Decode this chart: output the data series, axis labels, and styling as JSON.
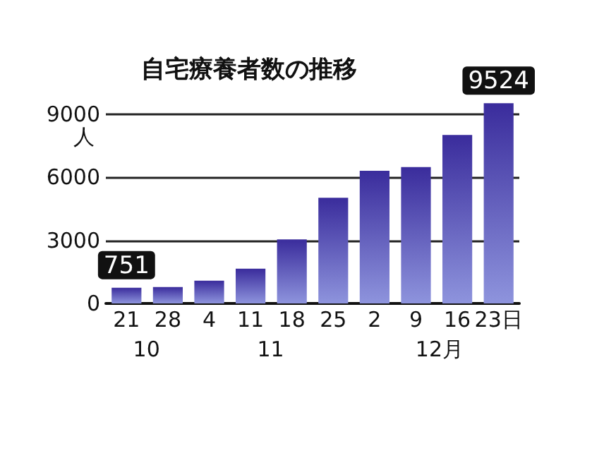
{
  "chart_data": {
    "type": "bar",
    "title": "自宅療養者数の推移",
    "ylabel": "人",
    "categories": [
      "21",
      "28",
      "4",
      "11",
      "18",
      "25",
      "2",
      "9",
      "16",
      "23日"
    ],
    "values": [
      751,
      780,
      1080,
      1650,
      3050,
      5030,
      6310,
      6490,
      8010,
      9524
    ],
    "value_labels": [
      "751",
      null,
      null,
      null,
      null,
      null,
      null,
      null,
      null,
      "9524"
    ],
    "color": "#3a2c9c",
    "ylim": [
      0,
      9600
    ],
    "yticks": [
      0,
      3000,
      6000,
      9000
    ],
    "grid": "y",
    "annotations": [
      "10",
      "11",
      "12月"
    ]
  }
}
